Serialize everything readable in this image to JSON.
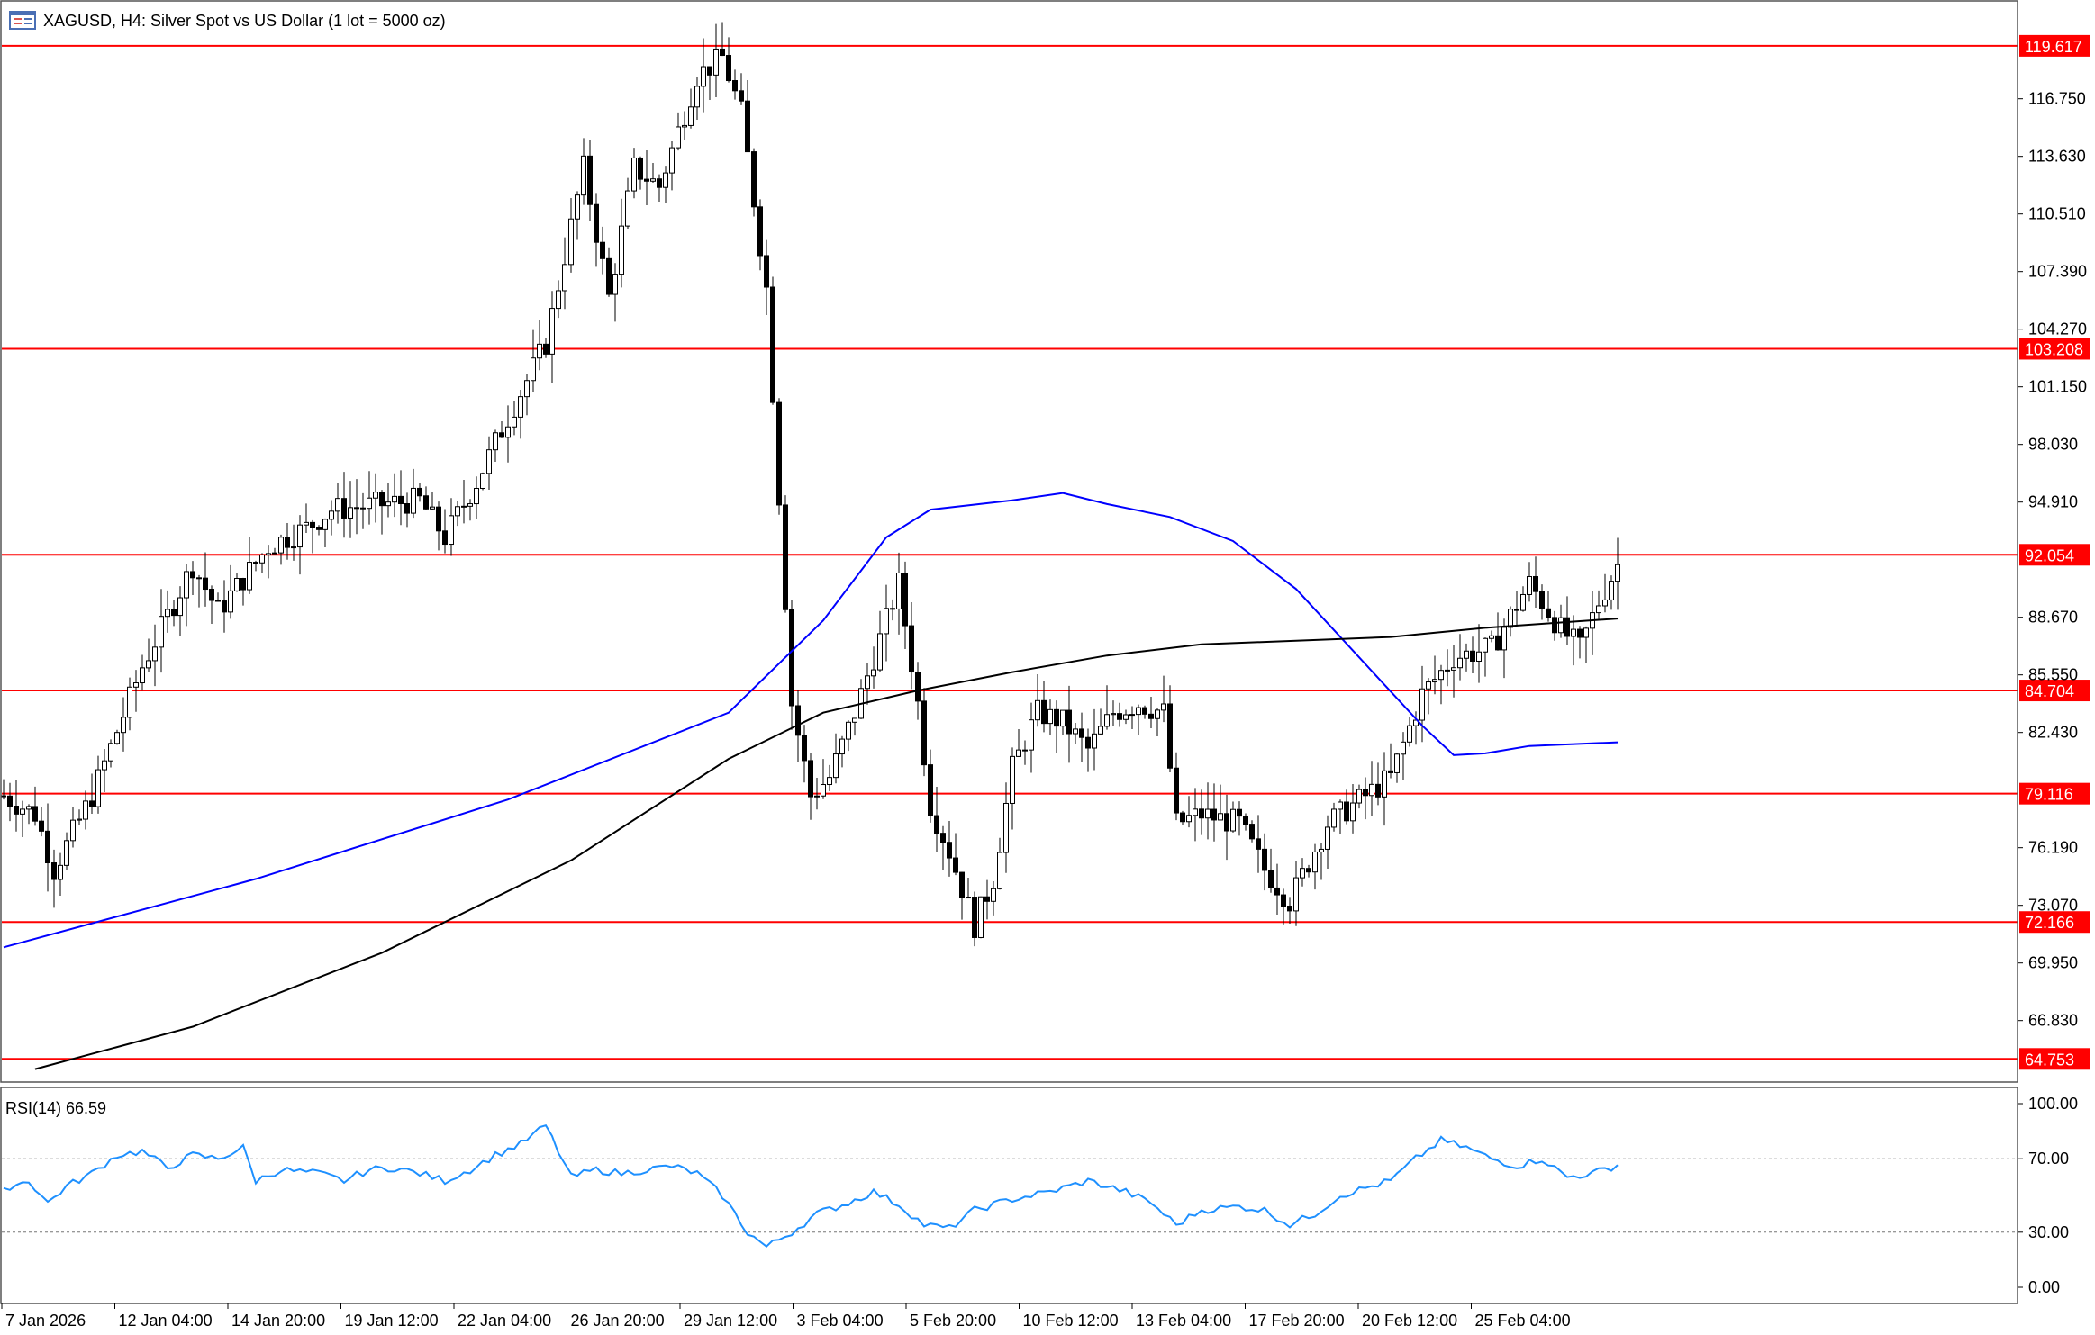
{
  "window": {
    "symbol_title": "XAGUSD, H4:  Silver Spot vs US Dollar (1 lot = 5000 oz)",
    "icon": "chart-window-icon"
  },
  "colors": {
    "background": "#ffffff",
    "candle": "#000000",
    "level_line": "#ff0000",
    "level_label_bg": "#ff0000",
    "level_label_text": "#ffffff",
    "ma_fast": "#0000ff",
    "ma_slow": "#000000",
    "rsi_line": "#1e90ff",
    "frame": "#555555"
  },
  "chart_data": [
    {
      "type": "candlestick",
      "title": "XAGUSD, H4:  Silver Spot vs US Dollar (1 lot = 5000 oz)",
      "ylim": [
        63.5,
        122.0
      ],
      "y_ticks": [
        "116.750",
        "113.630",
        "110.510",
        "107.390",
        "104.270",
        "101.150",
        "98.030",
        "94.910",
        "88.670",
        "85.550",
        "82.430",
        "76.190",
        "73.070",
        "69.950",
        "66.830"
      ],
      "x_ticks": [
        "7 Jan 2026",
        "12 Jan 04:00",
        "14 Jan 20:00",
        "19 Jan 12:00",
        "22 Jan 04:00",
        "26 Jan 20:00",
        "29 Jan 12:00",
        "3 Feb 04:00",
        "5 Feb 20:00",
        "10 Feb 12:00",
        "13 Feb 04:00",
        "17 Feb 20:00",
        "20 Feb 12:00",
        "25 Feb 04:00"
      ],
      "levels": [
        "119.617",
        "103.208",
        "92.054",
        "84.704",
        "79.116",
        "72.166",
        "64.753"
      ],
      "anchors": [
        [
          0,
          79.0
        ],
        [
          5,
          78.0
        ],
        [
          8,
          75.0
        ],
        [
          14,
          79.0
        ],
        [
          22,
          86.0
        ],
        [
          30,
          91.5
        ],
        [
          34,
          89.0
        ],
        [
          42,
          92.5
        ],
        [
          48,
          93.5
        ],
        [
          52,
          94.5
        ],
        [
          60,
          94.8
        ],
        [
          66,
          95.0
        ],
        [
          70,
          93.0
        ],
        [
          75,
          96.0
        ],
        [
          80,
          99.5
        ],
        [
          86,
          103.5
        ],
        [
          92,
          113.0
        ],
        [
          96,
          106.0
        ],
        [
          100,
          113.0
        ],
        [
          104,
          112.0
        ],
        [
          110,
          118.0
        ],
        [
          114,
          119.0
        ],
        [
          117,
          116.0
        ],
        [
          121,
          106.5
        ],
        [
          125,
          84.0
        ],
        [
          128,
          79.0
        ],
        [
          131,
          80.0
        ],
        [
          135,
          83.5
        ],
        [
          138,
          86.5
        ],
        [
          142,
          90.5
        ],
        [
          145,
          84.0
        ],
        [
          147,
          78.5
        ],
        [
          150,
          76.0
        ],
        [
          154,
          72.0
        ],
        [
          157,
          74.5
        ],
        [
          160,
          80.5
        ],
        [
          164,
          83.5
        ],
        [
          168,
          83.0
        ],
        [
          172,
          81.5
        ],
        [
          176,
          83.5
        ],
        [
          180,
          84.0
        ],
        [
          184,
          83.5
        ],
        [
          186,
          77.5
        ],
        [
          190,
          78.0
        ],
        [
          196,
          77.5
        ],
        [
          200,
          75.0
        ],
        [
          204,
          73.3
        ],
        [
          210,
          77.5
        ],
        [
          216,
          79.0
        ],
        [
          220,
          80.0
        ],
        [
          225,
          84.5
        ],
        [
          230,
          86.5
        ],
        [
          236,
          87.0
        ],
        [
          242,
          90.5
        ],
        [
          247,
          88.0
        ],
        [
          250,
          87.0
        ],
        [
          253,
          89.5
        ],
        [
          256,
          91.5
        ]
      ],
      "series": [
        {
          "name": "",
          "type": "moving_average",
          "color": "#0000ff",
          "values": [
            [
              0,
              70.8
            ],
            [
              40,
              74.5
            ],
            [
              80,
              78.8
            ],
            [
              115,
              83.5
            ],
            [
              130,
              88.5
            ],
            [
              140,
              93.0
            ],
            [
              147,
              94.5
            ],
            [
              160,
              95.0
            ],
            [
              168,
              95.4
            ],
            [
              175,
              94.8
            ],
            [
              185,
              94.1
            ],
            [
              195,
              92.8
            ],
            [
              205,
              90.2
            ],
            [
              215,
              86.5
            ],
            [
              225,
              82.8
            ],
            [
              230,
              81.2
            ],
            [
              235,
              81.3
            ],
            [
              242,
              81.7
            ],
            [
              256,
              81.9
            ]
          ]
        },
        {
          "name": "",
          "type": "moving_average",
          "color": "#000000",
          "values": [
            [
              5,
              64.2
            ],
            [
              30,
              66.5
            ],
            [
              60,
              70.5
            ],
            [
              90,
              75.5
            ],
            [
              115,
              81.0
            ],
            [
              130,
              83.5
            ],
            [
              145,
              84.7
            ],
            [
              160,
              85.7
            ],
            [
              175,
              86.6
            ],
            [
              190,
              87.2
            ],
            [
              205,
              87.4
            ],
            [
              220,
              87.6
            ],
            [
              235,
              88.1
            ],
            [
              256,
              88.6
            ]
          ]
        }
      ]
    },
    {
      "type": "line",
      "title": "RSI(14) 66.59",
      "ylim": [
        0,
        100
      ],
      "y_ticks": [
        "100.00",
        "70.00",
        "30.00",
        "0.00"
      ],
      "reference_lines": [
        70,
        30
      ],
      "series": [
        {
          "name": "RSI(14)",
          "color": "#1e90ff",
          "values": [
            [
              0,
              54
            ],
            [
              4,
              58
            ],
            [
              7,
              46
            ],
            [
              10,
              55
            ],
            [
              14,
              62
            ],
            [
              18,
              72
            ],
            [
              22,
              74
            ],
            [
              26,
              65
            ],
            [
              30,
              72
            ],
            [
              34,
              70
            ],
            [
              38,
              76
            ],
            [
              40,
              58
            ],
            [
              44,
              64
            ],
            [
              50,
              62
            ],
            [
              54,
              58
            ],
            [
              58,
              64
            ],
            [
              62,
              65
            ],
            [
              66,
              62
            ],
            [
              70,
              58
            ],
            [
              74,
              64
            ],
            [
              78,
              72
            ],
            [
              82,
              78
            ],
            [
              86,
              88
            ],
            [
              90,
              60
            ],
            [
              94,
              64
            ],
            [
              98,
              62
            ],
            [
              102,
              64
            ],
            [
              106,
              66
            ],
            [
              110,
              62
            ],
            [
              114,
              50
            ],
            [
              118,
              30
            ],
            [
              121,
              22
            ],
            [
              125,
              30
            ],
            [
              129,
              40
            ],
            [
              134,
              46
            ],
            [
              138,
              52
            ],
            [
              142,
              45
            ],
            [
              146,
              34
            ],
            [
              150,
              32
            ],
            [
              154,
              42
            ],
            [
              160,
              48
            ],
            [
              166,
              52
            ],
            [
              172,
              58
            ],
            [
              178,
              52
            ],
            [
              182,
              46
            ],
            [
              186,
              34
            ],
            [
              190,
              42
            ],
            [
              196,
              44
            ],
            [
              200,
              42
            ],
            [
              204,
              34
            ],
            [
              208,
              40
            ],
            [
              212,
              50
            ],
            [
              216,
              54
            ],
            [
              220,
              58
            ],
            [
              224,
              70
            ],
            [
              228,
              80
            ],
            [
              232,
              76
            ],
            [
              236,
              70
            ],
            [
              240,
              66
            ],
            [
              244,
              70
            ],
            [
              248,
              60
            ],
            [
              252,
              62
            ],
            [
              256,
              66.59
            ]
          ]
        }
      ]
    }
  ]
}
